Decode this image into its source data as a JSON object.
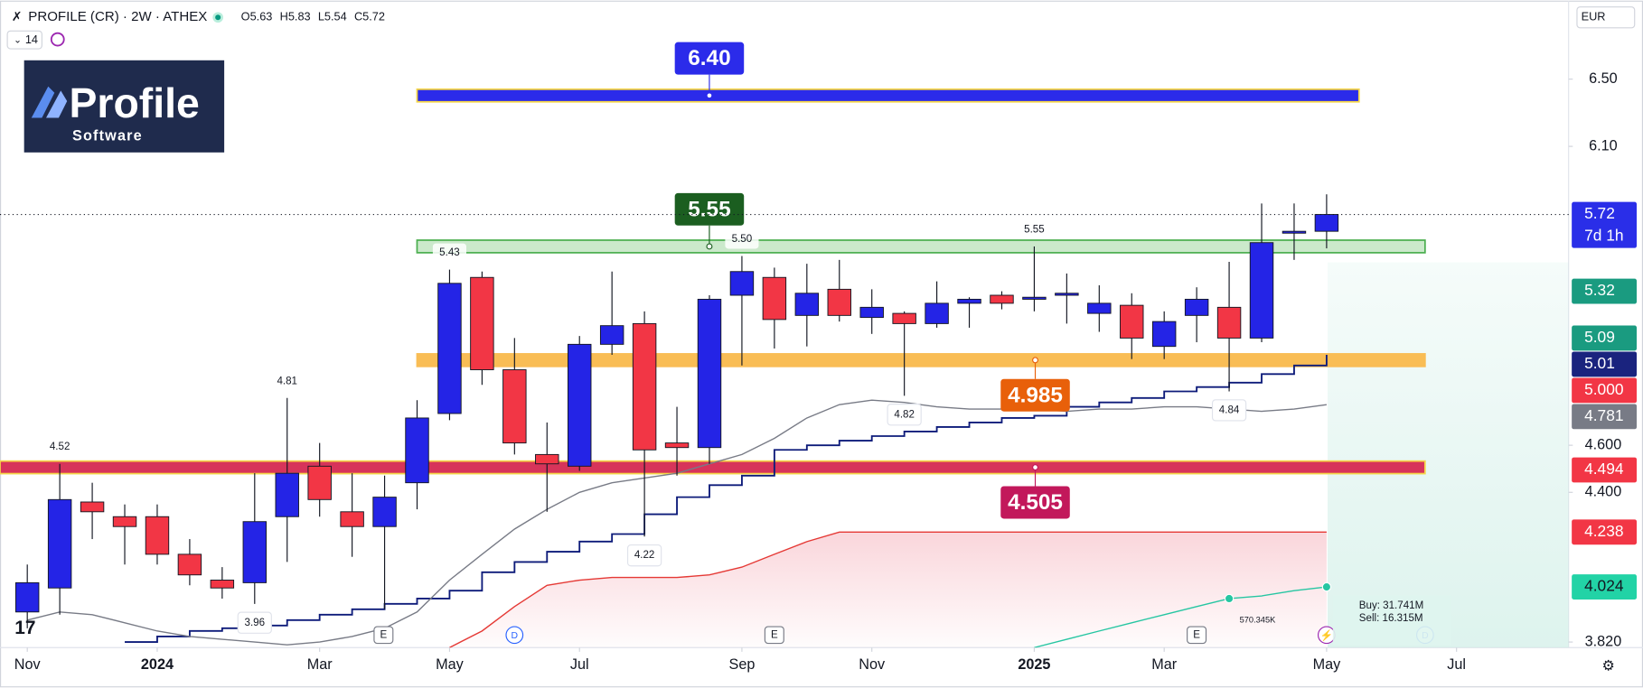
{
  "header": {
    "symbol": "PROFILE (CR) · 2W · ATHEX",
    "interval": "14",
    "currency": "EUR",
    "ohlc_labels": [
      "O",
      "H",
      "L",
      "C"
    ]
  },
  "logo": {
    "name": "Profile",
    "tagline": "Software"
  },
  "chart_data": {
    "type": "candlestick",
    "log_scale": true,
    "grid": false,
    "up_color": "#2424e6",
    "down_color": "#f23645",
    "open": [
      3.93,
      4.02,
      4.36,
      4.3,
      4.3,
      4.15,
      4.05,
      4.04,
      4.3,
      4.51,
      4.32,
      4.26,
      4.44,
      4.74,
      5.39,
      4.94,
      4.56,
      4.51,
      5.06,
      5.16,
      4.61,
      4.59,
      5.3,
      5.39,
      5.2,
      5.33,
      5.19,
      5.21,
      5.16,
      5.26,
      5.3,
      5.28,
      5.3,
      5.21,
      5.25,
      5.05,
      5.2,
      5.24,
      5.09,
      5.62,
      5.63
    ],
    "high": [
      4.11,
      4.52,
      4.44,
      4.35,
      4.35,
      4.21,
      4.1,
      4.48,
      4.81,
      4.61,
      4.48,
      4.47,
      4.8,
      5.43,
      5.42,
      5.09,
      4.7,
      5.1,
      5.42,
      5.22,
      4.77,
      5.3,
      5.5,
      5.44,
      5.46,
      5.48,
      5.33,
      5.22,
      5.37,
      5.29,
      5.32,
      5.55,
      5.41,
      5.35,
      5.31,
      5.22,
      5.34,
      5.47,
      5.78,
      5.78,
      5.83
    ],
    "low": [
      3.87,
      3.92,
      4.21,
      4.11,
      4.11,
      4.03,
      3.98,
      3.96,
      4.12,
      4.3,
      4.14,
      3.94,
      4.33,
      4.71,
      4.87,
      4.56,
      4.32,
      4.49,
      5.01,
      4.22,
      4.47,
      4.52,
      4.96,
      5.04,
      5.05,
      5.17,
      5.11,
      4.82,
      5.14,
      5.14,
      5.23,
      5.22,
      5.16,
      5.12,
      4.99,
      4.99,
      5.07,
      4.84,
      5.07,
      5.48,
      5.54
    ],
    "close": [
      4.04,
      4.37,
      4.32,
      4.26,
      4.15,
      4.07,
      4.02,
      4.28,
      4.48,
      4.37,
      4.26,
      4.38,
      4.72,
      5.36,
      4.94,
      4.61,
      4.52,
      5.06,
      5.15,
      4.58,
      4.59,
      5.28,
      5.42,
      5.18,
      5.31,
      5.2,
      5.24,
      5.16,
      5.26,
      5.28,
      5.26,
      5.29,
      5.31,
      5.26,
      5.09,
      5.17,
      5.28,
      5.09,
      5.57,
      5.63,
      5.72
    ],
    "high_labels": [
      null,
      "4.52",
      null,
      null,
      null,
      null,
      null,
      null,
      "4.81",
      null,
      null,
      null,
      null,
      "5.43",
      null,
      null,
      null,
      null,
      null,
      null,
      null,
      null,
      "5.50",
      null,
      null,
      null,
      null,
      null,
      null,
      null,
      null,
      "5.55",
      null,
      null,
      null,
      null,
      null,
      null,
      null,
      null,
      null
    ],
    "low_labels": [
      null,
      null,
      null,
      null,
      null,
      null,
      null,
      "3.96",
      null,
      null,
      null,
      null,
      null,
      null,
      null,
      null,
      null,
      null,
      null,
      "4.22",
      null,
      null,
      null,
      null,
      null,
      null,
      null,
      "4.82",
      null,
      null,
      null,
      null,
      null,
      null,
      null,
      null,
      null,
      "4.84",
      null,
      null,
      null
    ],
    "ylim": [
      3.8,
      7.0
    ],
    "yticks": [
      {
        "value": 3.82,
        "label": "3.820"
      },
      {
        "value": 4.4,
        "label": "4.400"
      },
      {
        "value": 4.6,
        "label": "4.600"
      },
      {
        "value": 6.1,
        "label": "6.10"
      },
      {
        "value": 6.5,
        "label": "6.50"
      }
    ],
    "xlim": [
      -0.84,
      47.45
    ],
    "xticks": [
      {
        "value": 0,
        "label": "Nov"
      },
      {
        "value": 4,
        "label": "2024"
      },
      {
        "value": 9,
        "label": "Mar"
      },
      {
        "value": 13,
        "label": "May"
      },
      {
        "value": 17,
        "label": "Jul"
      },
      {
        "value": 22,
        "label": "Sep"
      },
      {
        "value": 26,
        "label": "Nov"
      },
      {
        "value": 31,
        "label": "2025"
      },
      {
        "value": 35,
        "label": "Mar"
      },
      {
        "value": 40,
        "label": "May"
      },
      {
        "value": 44,
        "label": "Jul"
      }
    ],
    "lines": [
      {
        "color": "#0d1b7a",
        "style": "step",
        "values": [
          null,
          null,
          null,
          3.82,
          3.84,
          3.86,
          3.87,
          3.88,
          3.9,
          3.92,
          3.94,
          3.96,
          3.98,
          4.01,
          4.08,
          4.12,
          4.16,
          4.2,
          4.23,
          4.31,
          4.38,
          4.43,
          4.47,
          4.58,
          4.6,
          4.62,
          4.64,
          4.66,
          4.68,
          4.7,
          4.72,
          4.73,
          4.77,
          4.79,
          4.81,
          4.84,
          4.86,
          4.88,
          4.92,
          4.96,
          5.01
        ]
      },
      {
        "color": "#787b86",
        "style": "line",
        "values": [
          3.9,
          3.93,
          3.92,
          3.89,
          3.86,
          3.84,
          3.83,
          3.82,
          3.81,
          3.82,
          3.84,
          3.87,
          3.93,
          4.05,
          4.15,
          4.25,
          4.33,
          4.4,
          4.44,
          4.46,
          4.48,
          4.52,
          4.56,
          4.63,
          4.72,
          4.78,
          4.8,
          4.79,
          4.77,
          4.76,
          4.76,
          4.76,
          4.75,
          4.76,
          4.76,
          4.77,
          4.77,
          4.76,
          4.75,
          4.76,
          4.78
        ]
      },
      {
        "color": "#e53935",
        "style": "line",
        "values": [
          null,
          null,
          null,
          null,
          null,
          null,
          null,
          null,
          null,
          null,
          null,
          null,
          null,
          3.8,
          3.86,
          3.95,
          4.03,
          4.05,
          4.06,
          4.06,
          4.06,
          4.07,
          4.1,
          4.15,
          4.2,
          4.238,
          4.238,
          4.238,
          4.238,
          4.238,
          4.238,
          4.238,
          4.238,
          4.238,
          4.238,
          4.238,
          4.238,
          4.238,
          4.238,
          4.238,
          4.238
        ]
      },
      {
        "color": "#26c6a2",
        "style": "line",
        "values": [
          null,
          null,
          null,
          null,
          null,
          null,
          null,
          null,
          null,
          null,
          null,
          null,
          null,
          null,
          null,
          null,
          null,
          null,
          null,
          null,
          null,
          null,
          null,
          null,
          null,
          null,
          null,
          null,
          null,
          null,
          null,
          3.8,
          3.83,
          3.86,
          3.89,
          3.92,
          3.95,
          3.98,
          3.99,
          4.01,
          4.024
        ]
      }
    ],
    "levels": [
      {
        "value": 6.4,
        "label": "6.40",
        "zone_color": "#2b2bea",
        "border_color": "#f5d547",
        "label_color": "#2b2bea",
        "side": "above"
      },
      {
        "value": 5.55,
        "label": "5.55",
        "zone_color": "#a8dba8",
        "border_color": "#4caf50",
        "label_color": "#1b5e20",
        "side": "above"
      },
      {
        "value": 4.985,
        "label": "4.985",
        "zone_color": "#f9bd55",
        "border_color": "#f9bd55",
        "label_color": "#e8600a",
        "side": "below"
      },
      {
        "value": 4.505,
        "label": "4.505",
        "zone_color": "#d7345a",
        "border_color": "#f5d547",
        "label_color": "#c2185b",
        "side": "below"
      }
    ],
    "price_labels": [
      {
        "value": 5.72,
        "label": "5.72",
        "color": "#2a2ee8",
        "text_color": "#ffffff"
      },
      {
        "value": 5.32,
        "label": "5.32",
        "color": "#1a9b80",
        "text_color": "#ffffff"
      },
      {
        "value": 5.09,
        "label": "5.09",
        "color": "#1a9b80",
        "text_color": "#ffffff"
      },
      {
        "value": 5.01,
        "label": "5.01",
        "color": "#1a237e",
        "text_color": "#ffffff"
      },
      {
        "value": 5.0,
        "label": "5.000",
        "color": "#f23645",
        "text_color": "#ffffff"
      },
      {
        "value": 4.781,
        "label": "4.781",
        "color": "#787b86",
        "text_color": "#ffffff"
      },
      {
        "value": 4.494,
        "label": "4.494",
        "color": "#f23645",
        "text_color": "#ffffff"
      },
      {
        "value": 4.238,
        "label": "4.238",
        "color": "#f23645",
        "text_color": "#ffffff"
      },
      {
        "value": 4.024,
        "label": "4.024",
        "color": "#22d3a6",
        "text_color": "#131722"
      }
    ],
    "countdown": "7d 1h",
    "volume_info": [
      "Buy: 31.741M",
      "Sell: 16.315M"
    ],
    "point_label": "570.345K"
  }
}
